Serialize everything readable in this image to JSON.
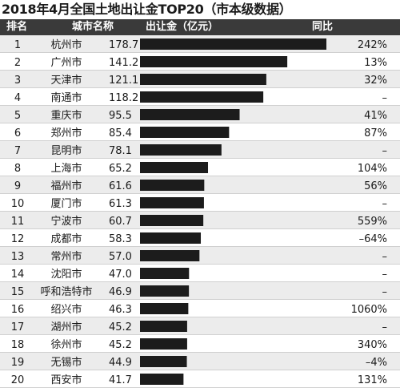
{
  "title": "2018年4月全国土地出让金TOP20（市本级数据）",
  "columns": {
    "rank": "排名",
    "city": "城市名称",
    "amount": "出让金（亿元）",
    "yoy": "同比"
  },
  "colors": {
    "bar": "#1c1c1c",
    "header_bg": "#3a3a3a",
    "row_alt": "#ececec",
    "row": "#ffffff"
  },
  "chart_data": {
    "type": "bar",
    "orientation": "horizontal",
    "title": "2018年4月全国土地出让金TOP20（市本级数据）",
    "xlim": [
      0,
      180
    ],
    "grid": false,
    "ranks": [
      "1",
      "2",
      "3",
      "4",
      "5",
      "6",
      "7",
      "8",
      "9",
      "10",
      "11",
      "12",
      "13",
      "14",
      "15",
      "16",
      "17",
      "18",
      "19",
      "20"
    ],
    "categories": [
      "杭州市",
      "广州市",
      "天津市",
      "南通市",
      "重庆市",
      "郑州市",
      "昆明市",
      "上海市",
      "福州市",
      "厦门市",
      "宁波市",
      "成都市",
      "常州市",
      "沈阳市",
      "呼和浩特市",
      "绍兴市",
      "湖州市",
      "徐州市",
      "无锡市",
      "西安市"
    ],
    "value_labels": [
      "178.7",
      "141.2",
      "121.1",
      "118.2",
      "95.5",
      "85.4",
      "78.1",
      "65.2",
      "61.6",
      "61.3",
      "60.7",
      "58.3",
      "57.0",
      "47.0",
      "46.9",
      "46.3",
      "45.2",
      "45.2",
      "44.9",
      "41.7"
    ],
    "values": [
      178.7,
      141.2,
      121.1,
      118.2,
      95.5,
      85.4,
      78.1,
      65.2,
      61.6,
      61.3,
      60.7,
      58.3,
      57.0,
      47.0,
      46.9,
      46.3,
      45.2,
      45.2,
      44.9,
      41.7
    ],
    "yoy": [
      "242%",
      "13%",
      "32%",
      "–",
      "41%",
      "87%",
      "–",
      "104%",
      "56%",
      "–",
      "559%",
      "–64%",
      "–",
      "–",
      "–",
      "1060%",
      "–",
      "340%",
      "–4%",
      "131%"
    ]
  }
}
